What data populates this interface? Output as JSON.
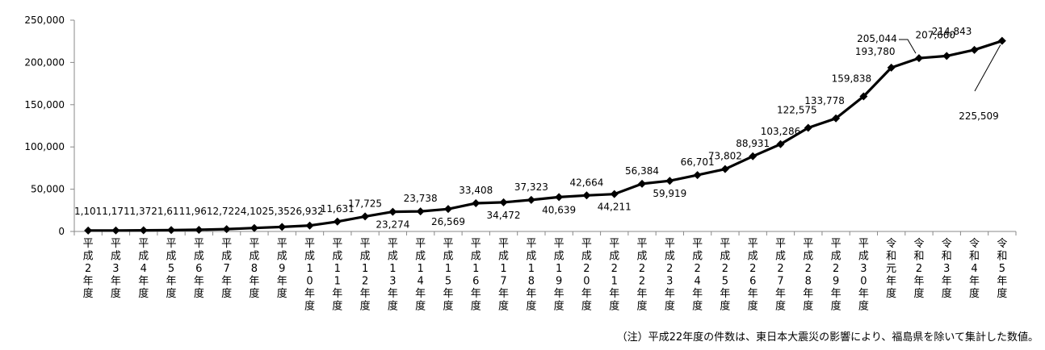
{
  "chart_data": {
    "type": "line",
    "categories": [
      "平成2年度",
      "平成3年度",
      "平成4年度",
      "平成5年度",
      "平成6年度",
      "平成7年度",
      "平成8年度",
      "平成9年度",
      "平成10年度",
      "平成11年度",
      "平成12年度",
      "平成13年度",
      "平成14年度",
      "平成15年度",
      "平成16年度",
      "平成17年度",
      "平成18年度",
      "平成19年度",
      "平成20年度",
      "平成21年度",
      "平成22年度",
      "平成23年度",
      "平成24年度",
      "平成25年度",
      "平成26年度",
      "平成27年度",
      "平成28年度",
      "平成29年度",
      "平成30年度",
      "令和元年度",
      "令和2年度",
      "令和3年度",
      "令和4年度",
      "令和5年度"
    ],
    "values": [
      1101,
      1171,
      1372,
      1611,
      1961,
      2722,
      4102,
      5352,
      6932,
      11631,
      17725,
      23274,
      23738,
      26569,
      33408,
      34472,
      37323,
      40639,
      42664,
      44211,
      56384,
      59919,
      66701,
      73802,
      88931,
      103286,
      122575,
      133778,
      159838,
      193780,
      205044,
      207660,
      214843,
      225509
    ],
    "data_labels": [
      "1,101",
      "1,171",
      "1,372",
      "1,611",
      "1,961",
      "2,722",
      "4,102",
      "5,352",
      "6,932",
      "11,631",
      "17,725",
      "23,274",
      "23,738",
      "26,569",
      "33,408",
      "34,472",
      "37,323",
      "40,639",
      "42,664",
      "44,211",
      "56,384",
      "59,919",
      "66,701",
      "73,802",
      "88,931",
      "103,286",
      "122,575",
      "133,778",
      "159,838",
      "193,780",
      "205,044",
      "207,660",
      "214,843",
      "225,509"
    ],
    "yticks": [
      "0",
      "50,000",
      "100,000",
      "150,000",
      "200,000",
      "250,000"
    ],
    "ylim": [
      0,
      250000
    ],
    "highlight_color": "#E8733A",
    "line_color": "#000000",
    "grid": false
  },
  "note": "（注）平成22年度の件数は、東日本大震災の影響により、福島県を除いて集計した数値。"
}
